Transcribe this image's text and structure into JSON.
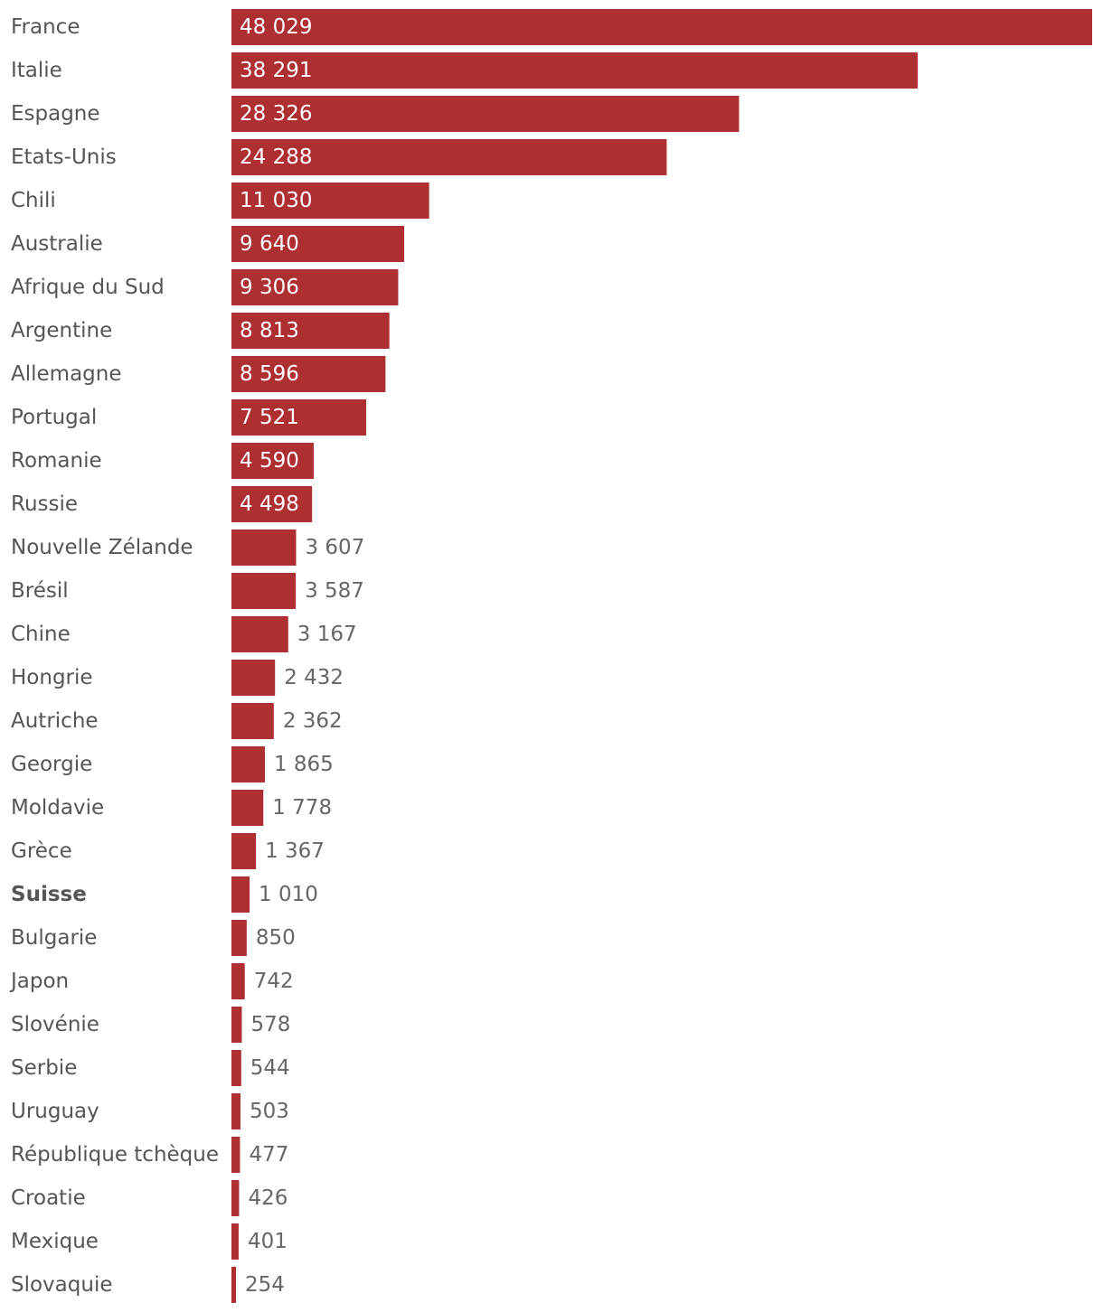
{
  "chart_data": {
    "type": "bar",
    "orientation": "horizontal",
    "bar_color": "#ad2f31",
    "highlight": "Suisse",
    "xlim": [
      0,
      48029
    ],
    "categories": [
      "France",
      "Italie",
      "Espagne",
      "Etats-Unis",
      "Chili",
      "Australie",
      "Afrique du Sud",
      "Argentine",
      "Allemagne",
      "Portugal",
      "Romanie",
      "Russie",
      "Nouvelle Zélande",
      "Brésil",
      "Chine",
      "Hongrie",
      "Autriche",
      "Georgie",
      "Moldavie",
      "Grèce",
      "Suisse",
      "Bulgarie",
      "Japon",
      "Slovénie",
      "Serbie",
      "Uruguay",
      "République tchèque",
      "Croatie",
      "Mexique",
      "Slovaquie"
    ],
    "values": [
      48029,
      38291,
      28326,
      24288,
      11030,
      9640,
      9306,
      8813,
      8596,
      7521,
      4590,
      4498,
      3607,
      3587,
      3167,
      2432,
      2362,
      1865,
      1778,
      1367,
      1010,
      850,
      742,
      578,
      544,
      503,
      477,
      426,
      401,
      254
    ],
    "value_labels": [
      "48 029",
      "38 291",
      "28 326",
      "24 288",
      "11 030",
      "9 640",
      "9 306",
      "8 813",
      "8 596",
      "7 521",
      "4 590",
      "4 498",
      "3 607",
      "3 587",
      "3 167",
      "2 432",
      "2 362",
      "1 865",
      "1 778",
      "1 367",
      "1 010",
      "850",
      "742",
      "578",
      "544",
      "503",
      "477",
      "426",
      "401",
      "254"
    ]
  }
}
